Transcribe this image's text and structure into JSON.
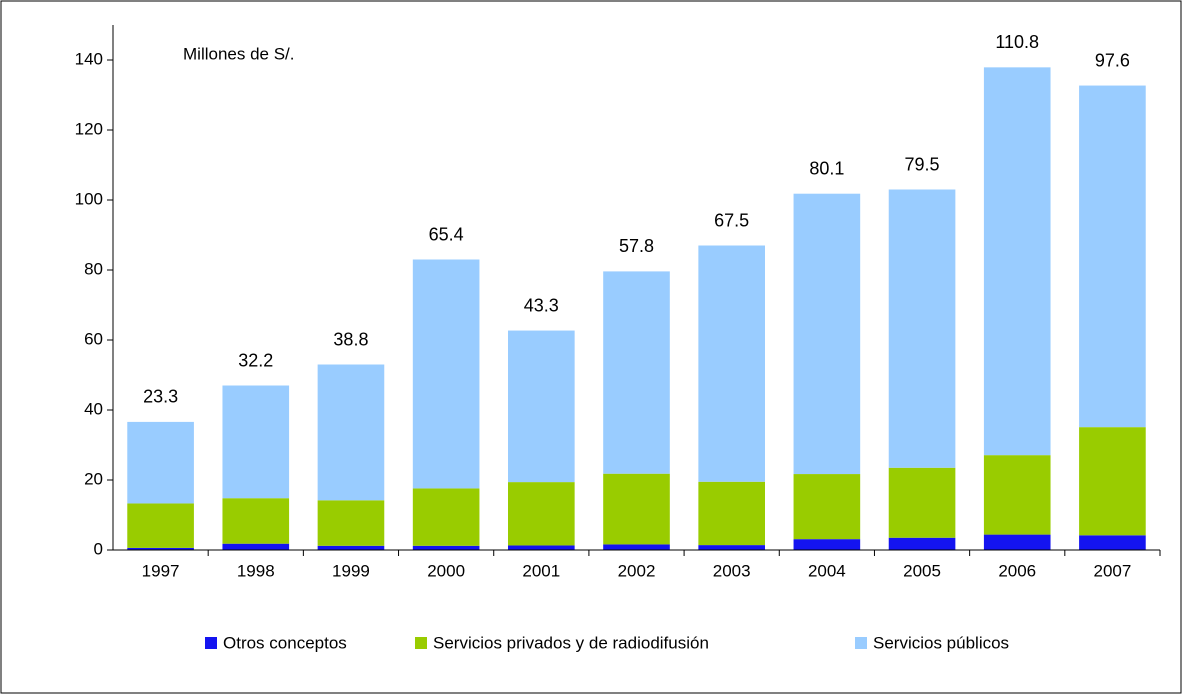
{
  "chart_data": {
    "type": "stacked_bar",
    "annotation": "Millones de S/.",
    "categories": [
      "1997",
      "1998",
      "1999",
      "2000",
      "2001",
      "2002",
      "2003",
      "2004",
      "2005",
      "2006",
      "2007"
    ],
    "series": [
      {
        "name": "Otros conceptos",
        "color": "#1414f0",
        "values": [
          0.6,
          1.8,
          1.2,
          1.2,
          1.3,
          1.6,
          1.4,
          3.1,
          3.5,
          4.4,
          4.2
        ],
        "value_labels": [
          "0.6",
          "1.8",
          "1.2",
          "1.2",
          "1.3",
          "1.6",
          "1.4",
          "3.1",
          "3.5",
          "4.4",
          "4.2"
        ]
      },
      {
        "name": "Servicios privados y de radiodifusión",
        "color": "#99cc00",
        "values": [
          12.7,
          13,
          13,
          16.4,
          18.1,
          20.2,
          18.1,
          18.6,
          20,
          22.7,
          30.9
        ],
        "value_labels": [
          "12.7",
          "13.0",
          "13.0",
          "16.4",
          "18.1",
          "20.2",
          "18.1",
          "18.6",
          "20.0",
          "22.7",
          "30.9"
        ]
      },
      {
        "name": "Servicios públicos",
        "color": "#99ccff",
        "values": [
          23.3,
          32.2,
          38.8,
          65.4,
          43.3,
          57.8,
          67.5,
          80.1,
          79.5,
          110.8,
          97.6
        ],
        "value_labels": [
          "23.3",
          "32.2",
          "38.8",
          "65.4",
          "43.3",
          "57.8",
          "67.5",
          "80.1",
          "79.5",
          "110.8",
          "97.6"
        ]
      }
    ],
    "ylim": [
      0,
      140
    ],
    "yticks": [
      0,
      20,
      40,
      60,
      80,
      100,
      120,
      140
    ]
  }
}
